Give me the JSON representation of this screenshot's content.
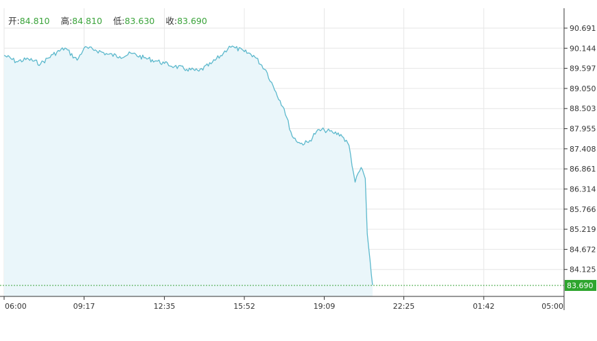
{
  "ohlc": {
    "open_label": "开:",
    "open_value": "84.810",
    "high_label": "高:",
    "high_value": "84.810",
    "low_label": "低:",
    "low_value": "83.630",
    "close_label": "收:",
    "close_value": "83.690"
  },
  "colors": {
    "line": "#5bb8cc",
    "area": "#eaf6fa",
    "grid": "#e6e6e6",
    "axis": "#333333",
    "ohlc_value": "#3aa33a",
    "last_price_bg": "#2ea52e",
    "last_price_line": "#3aa33a",
    "background": "#ffffff"
  },
  "chart_data": {
    "type": "area",
    "title": "",
    "xlabel": "",
    "ylabel": "",
    "grid": true,
    "x_ticks": [
      "06:00",
      "09:17",
      "12:35",
      "15:52",
      "19:09",
      "22:25",
      "01:42",
      "05:00"
    ],
    "y_ticks": [
      "90.691",
      "90.144",
      "89.597",
      "89.050",
      "88.503",
      "87.955",
      "87.408",
      "86.861",
      "86.314",
      "85.766",
      "85.219",
      "84.672",
      "84.125"
    ],
    "ylim": [
      83.7,
      90.9
    ],
    "last_price": "83.690",
    "series": [
      {
        "x": [
          "06:00",
          "06:30",
          "07:00",
          "07:30",
          "08:00",
          "08:30",
          "09:00",
          "09:17",
          "09:45",
          "10:15",
          "10:45",
          "11:15",
          "11:45",
          "12:15",
          "12:35",
          "13:00",
          "13:30",
          "14:00",
          "14:30",
          "15:00",
          "15:15",
          "15:30",
          "15:52",
          "16:15",
          "16:45",
          "17:10",
          "17:30",
          "17:50",
          "18:10",
          "18:30",
          "18:50",
          "19:09",
          "19:30",
          "19:50",
          "20:10",
          "20:25",
          "20:40",
          "20:50",
          "20:55",
          "21:05",
          "21:08"
        ],
        "values": [
          89.95,
          89.78,
          89.85,
          89.72,
          89.97,
          90.15,
          89.82,
          90.15,
          90.1,
          89.98,
          89.92,
          90.0,
          89.88,
          89.8,
          89.73,
          89.65,
          89.57,
          89.52,
          89.72,
          90.0,
          90.2,
          90.15,
          90.05,
          89.95,
          89.55,
          88.95,
          88.5,
          87.75,
          87.55,
          87.58,
          87.88,
          87.92,
          87.85,
          87.8,
          87.5,
          86.5,
          86.9,
          86.6,
          85.1,
          84.0,
          83.7
        ]
      }
    ]
  }
}
